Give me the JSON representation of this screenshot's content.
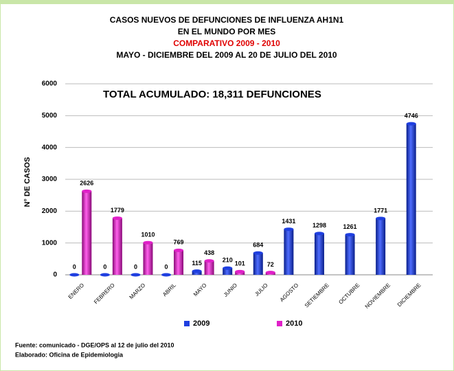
{
  "chart_data": {
    "type": "bar",
    "title": [
      "CASOS NUEVOS DE DEFUNCIONES DE INFLUENZA  AH1N1",
      "EN EL MUNDO POR MES"
    ],
    "subtitle": "COMPARATIVO 2009 - 2010",
    "period": "MAYO - DICIEMBRE DEL 2009 AL 20 DE JULIO DEL 2010",
    "annotation": "TOTAL  ACUMULADO: 18,311 DEFUNCIONES",
    "y_label": "N° DE CASOS",
    "categories": [
      "ENERO",
      "FEBRERO",
      "MARZO",
      "ABRIL",
      "MAYO",
      "JUNIO",
      "JULIO",
      "AGOSTO",
      "SETIEMBRE",
      "OCTUBRE",
      "NOVIEMBRE",
      "DICIEMBRE"
    ],
    "series": [
      {
        "name": "2009",
        "color": "#1f3fe0",
        "values": [
          0,
          0,
          0,
          0,
          115,
          210,
          684,
          1431,
          1298,
          1261,
          1771,
          4746
        ]
      },
      {
        "name": "2010",
        "color": "#e020c8",
        "values": [
          2626,
          1779,
          1010,
          769,
          438,
          101,
          72,
          null,
          null,
          null,
          null,
          null
        ]
      }
    ],
    "ylim": [
      0,
      6000
    ],
    "yticks": [
      0,
      1000,
      2000,
      3000,
      4000,
      5000,
      6000
    ],
    "grid": true,
    "legend": "bottom",
    "footer": [
      "Fuente: comunicado - DGE/OPS  al 12 de julio del 2010",
      "Elaborado: Oficina de Epidemiologia"
    ]
  }
}
